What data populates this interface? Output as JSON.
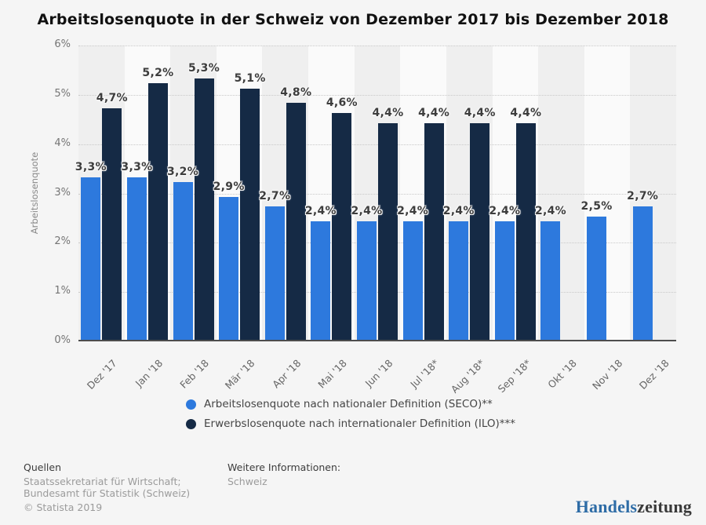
{
  "title": "Arbeitslosenquote in der Schweiz von Dezember 2017 bis Dezember 2018",
  "chart_data": {
    "type": "bar",
    "categories": [
      "Dez '17",
      "Jan '18",
      "Feb '18",
      "Mär '18",
      "Apr '18",
      "Mai '18",
      "Jun '18",
      "Jul '18*",
      "Aug '18*",
      "Sep '18*",
      "Okt '18",
      "Nov '18",
      "Dez '18"
    ],
    "series": [
      {
        "name": "Arbeitslosenquote nach nationaler Definition (SECO)**",
        "color": "#2d79dd",
        "values": [
          3.3,
          3.3,
          3.2,
          2.9,
          2.7,
          2.4,
          2.4,
          2.4,
          2.4,
          2.4,
          2.4,
          2.5,
          2.7
        ]
      },
      {
        "name": "Erwerbslosenquote nach internationaler Definition (ILO)***",
        "color": "#152a45",
        "values": [
          4.7,
          5.2,
          5.3,
          5.1,
          4.8,
          4.6,
          4.4,
          4.4,
          4.4,
          4.4,
          null,
          null,
          null
        ]
      }
    ],
    "title": "Arbeitslosenquote in der Schweiz von Dezember 2017 bis Dezember 2018",
    "xlabel": "",
    "ylabel": "Arbeitslosenquote",
    "ylim": [
      0,
      6
    ],
    "yticks": [
      "6%",
      "5%",
      "4%",
      "3%",
      "2%",
      "1%",
      "0%"
    ],
    "grid": "horizontal-dotted",
    "legend_position": "bottom",
    "value_labels": "shown, german decimal comma, e.g. 3,3%"
  },
  "legend": {
    "items": [
      {
        "label": "Arbeitslosenquote nach nationaler Definition (SECO)**",
        "color": "#2d79dd"
      },
      {
        "label": "Erwerbslosenquote nach internationaler Definition (ILO)***",
        "color": "#152a45"
      }
    ]
  },
  "footer": {
    "sources_title": "Quellen",
    "sources_text": "Staatssekretariat für Wirtschaft; Bundesamt für Statistik (Schweiz)",
    "copyright": "© Statista 2019",
    "info_title": "Weitere Informationen:",
    "info_text": "Schweiz"
  },
  "branding": {
    "logo_part1": "Handels",
    "logo_part2": "zeitung",
    "logo_color1": "#2e6ca6",
    "logo_color2": "#3a3a3a"
  },
  "style": {
    "background": "#f5f5f5",
    "band_dark": "#efefef",
    "band_light": "#fafafa",
    "axis_color": "#4d4d4d",
    "gridline_color": "#c9c9c9"
  }
}
